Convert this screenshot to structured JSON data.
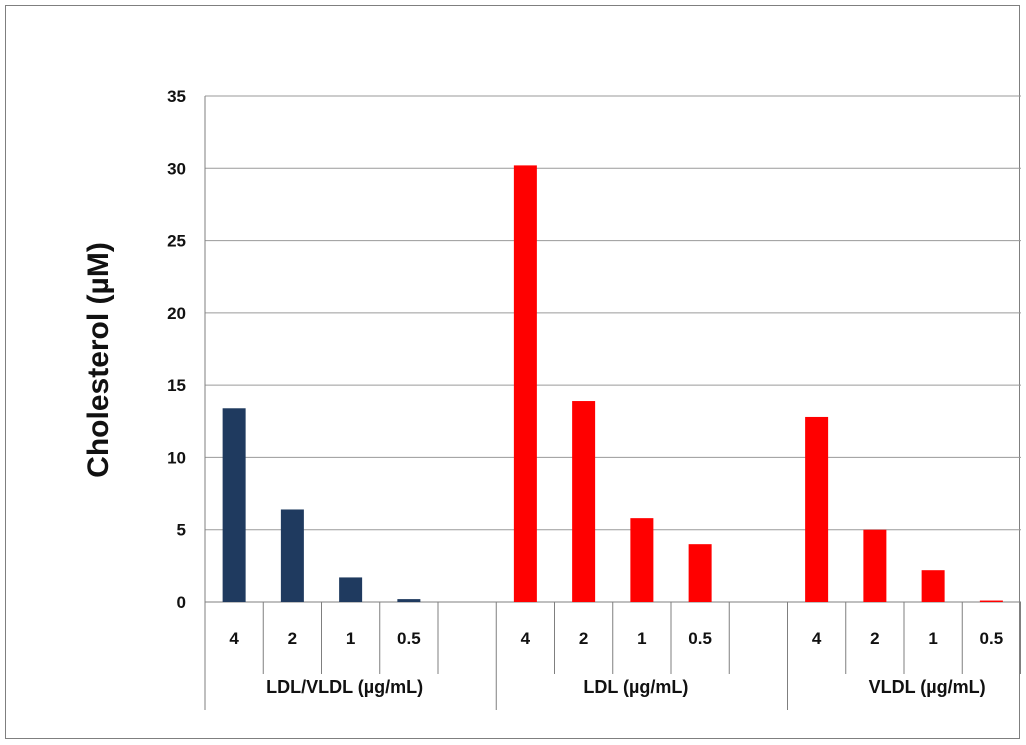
{
  "chart_data": {
    "type": "bar",
    "title": "",
    "xlabel": "",
    "ylabel": "Cholesterol (µM)",
    "ylim": [
      0,
      35
    ],
    "yticks": [
      0,
      5,
      10,
      15,
      20,
      25,
      30,
      35
    ],
    "grid": true,
    "legend": "none",
    "groups": [
      {
        "label": "LDL/VLDL (µg/mL)",
        "color": "#1f3a5f",
        "categories": [
          "4",
          "2",
          "1",
          "0.5"
        ],
        "values": [
          13.4,
          6.4,
          1.7,
          0.2
        ]
      },
      {
        "label": "LDL  (µg/mL)",
        "color": "#ff0000",
        "categories": [
          "4",
          "2",
          "1",
          "0.5"
        ],
        "values": [
          30.2,
          13.9,
          5.8,
          4.0
        ]
      },
      {
        "label": "VLDL (µg/mL)",
        "color": "#ff0000",
        "categories": [
          "4",
          "2",
          "1",
          "0.5"
        ],
        "values": [
          12.8,
          5.0,
          2.2,
          0.1
        ]
      }
    ]
  }
}
